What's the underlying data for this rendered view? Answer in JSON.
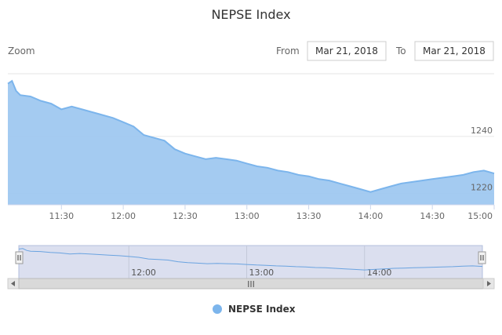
{
  "chart_data": {
    "type": "area",
    "title": "NEPSE Index",
    "zoom_label": "Zoom",
    "range": {
      "from_label": "From",
      "from_value": "Mar 21, 2018",
      "to_label": "To",
      "to_value": "Mar 21, 2018"
    },
    "x_ticks": [
      "11:30",
      "12:00",
      "12:30",
      "13:00",
      "13:30",
      "14:00",
      "14:30",
      "15:00"
    ],
    "y_ticks": [
      1220,
      1240
    ],
    "ylim": [
      1216,
      1262
    ],
    "xlim": [
      "11:04",
      "15:00"
    ],
    "grid": true,
    "legend": "bottom-center",
    "navigator_ticks": [
      "12:00",
      "13:00",
      "14:00"
    ],
    "scrollbar_grip": "III",
    "series": [
      {
        "name": "NEPSE Index",
        "color": "#7cb5ec",
        "x": [
          "11:04",
          "11:06",
          "11:08",
          "11:10",
          "11:15",
          "11:20",
          "11:25",
          "11:30",
          "11:35",
          "11:40",
          "11:45",
          "11:50",
          "11:55",
          "12:00",
          "12:05",
          "12:10",
          "12:15",
          "12:20",
          "12:25",
          "12:30",
          "12:35",
          "12:40",
          "12:45",
          "12:50",
          "12:55",
          "13:00",
          "13:05",
          "13:10",
          "13:15",
          "13:20",
          "13:25",
          "13:30",
          "13:35",
          "13:40",
          "13:45",
          "13:50",
          "13:55",
          "14:00",
          "14:05",
          "14:10",
          "14:15",
          "14:20",
          "14:25",
          "14:30",
          "14:35",
          "14:40",
          "14:45",
          "14:50",
          "14:55",
          "15:00"
        ],
        "values": [
          1258.5,
          1259.5,
          1256,
          1254.5,
          1254,
          1252.5,
          1251.5,
          1249.5,
          1250.5,
          1249.5,
          1248.5,
          1247.5,
          1246.5,
          1245,
          1243.5,
          1240.5,
          1239.5,
          1238.5,
          1235.5,
          1234,
          1233,
          1232,
          1232.5,
          1232,
          1231.5,
          1230.5,
          1229.5,
          1229,
          1228,
          1227.5,
          1226.5,
          1226,
          1225,
          1224.5,
          1223.5,
          1222.5,
          1221.5,
          1220.5,
          1221.5,
          1222.5,
          1223.5,
          1224,
          1224.5,
          1225,
          1225.5,
          1226,
          1226.5,
          1227.5,
          1228,
          1227
        ]
      }
    ]
  }
}
